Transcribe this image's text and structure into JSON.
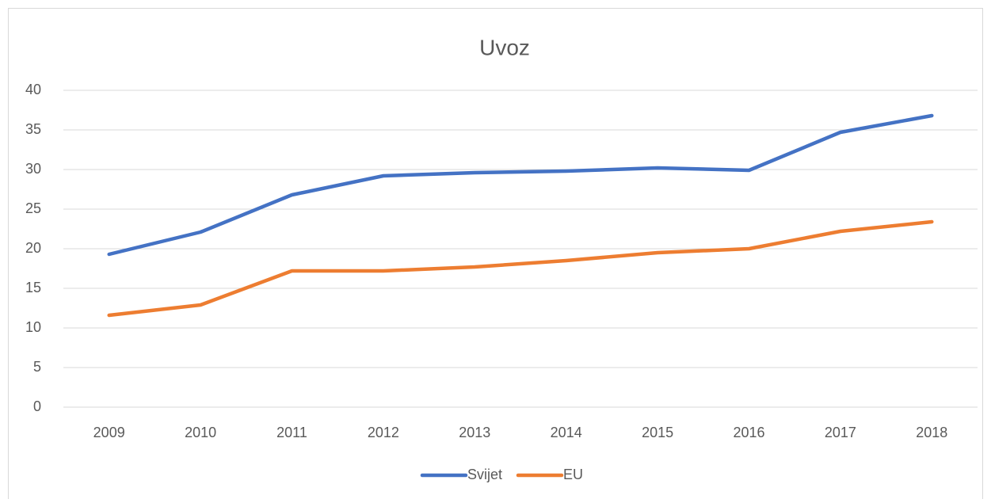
{
  "chart_data": {
    "type": "line",
    "title": "Uvoz",
    "categories": [
      "2009",
      "2010",
      "2011",
      "2012",
      "2013",
      "2014",
      "2015",
      "2016",
      "2017",
      "2018"
    ],
    "series": [
      {
        "name": "Svijet",
        "color": "#4472c4",
        "values": [
          19.3,
          22.1,
          26.8,
          29.2,
          29.6,
          29.8,
          30.2,
          29.9,
          34.7,
          36.8
        ]
      },
      {
        "name": "EU",
        "color": "#ed7d31",
        "values": [
          11.6,
          12.9,
          17.2,
          17.2,
          17.7,
          18.5,
          19.5,
          20.0,
          22.2,
          23.4
        ]
      }
    ],
    "ylim": [
      0,
      40
    ],
    "yticks": [
      0,
      5,
      10,
      15,
      20,
      25,
      30,
      35,
      40
    ],
    "grid": true,
    "legend": "bottom"
  }
}
